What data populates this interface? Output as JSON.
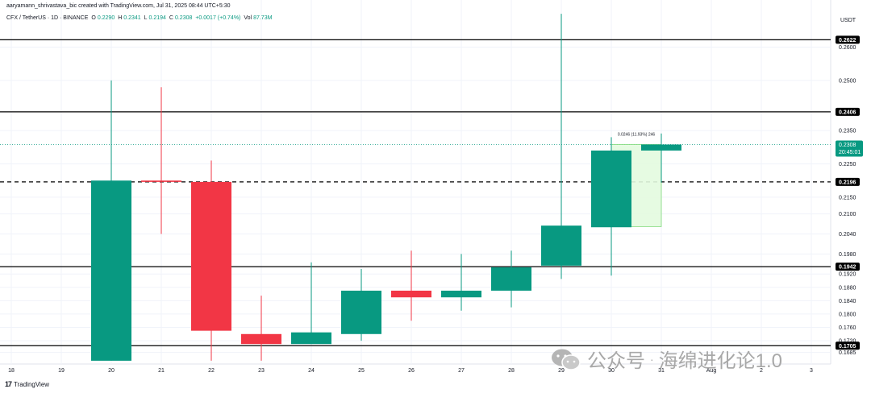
{
  "header": {
    "created_by": "aaryamann_shrivastava_bic created with TradingView.com, Jul 31, 2025 08:44 UTC+5:30",
    "symbol_line": "CFX / TetherUS · 1D · BINANCE",
    "open_label": "O",
    "open": "0.2290",
    "high_label": "H",
    "high": "0.2341",
    "low_label": "L",
    "low": "0.2194",
    "close_label": "C",
    "close": "0.2308",
    "change": "+0.0017 (+0.74%)",
    "vol_label": "Vol",
    "vol": "87.73M"
  },
  "currency": "USDT",
  "branding": "TradingView",
  "watermark": {
    "account": "公众号",
    "separator": "·",
    "name": "海绵进化论1.0"
  },
  "colors": {
    "up": "#089981",
    "down": "#f23645",
    "level_line": "#000000",
    "projection_fill": "#e3fbdf",
    "projection_stroke": "#7ed97a",
    "price_label_bg": "#000000",
    "current_label_bg": "#089981",
    "axis_text": "#131722"
  },
  "chart_data": {
    "type": "candlestick",
    "symbol": "CFX / TetherUS",
    "interval": "1D",
    "exchange": "BINANCE",
    "currency": "USDT",
    "x_tick_labels": [
      "18",
      "19",
      "20",
      "21",
      "22",
      "23",
      "24",
      "25",
      "26",
      "27",
      "28",
      "29",
      "30",
      "31",
      "Aug",
      "2",
      "3"
    ],
    "y_tick_labels": [
      "0.2600",
      "0.2500",
      "0.2350",
      "0.2250",
      "0.2150",
      "0.2100",
      "0.2040",
      "0.1980",
      "0.1920",
      "0.1880",
      "0.1840",
      "0.1800",
      "0.1760",
      "0.1720",
      "0.1685"
    ],
    "y_range": [
      0.1655,
      0.2705
    ],
    "candles": [
      {
        "date": "20",
        "open": 0.166,
        "high": 0.25,
        "low": 0.166,
        "close": 0.22
      },
      {
        "date": "21",
        "open": 0.22,
        "high": 0.248,
        "low": 0.204,
        "close": 0.2196
      },
      {
        "date": "22",
        "open": 0.2196,
        "high": 0.226,
        "low": 0.166,
        "close": 0.175
      },
      {
        "date": "23",
        "open": 0.174,
        "high": 0.1855,
        "low": 0.166,
        "close": 0.171
      },
      {
        "date": "24",
        "open": 0.171,
        "high": 0.1955,
        "low": 0.171,
        "close": 0.1745
      },
      {
        "date": "25",
        "open": 0.174,
        "high": 0.1935,
        "low": 0.172,
        "close": 0.187
      },
      {
        "date": "26",
        "open": 0.187,
        "high": 0.199,
        "low": 0.178,
        "close": 0.185
      },
      {
        "date": "27",
        "open": 0.185,
        "high": 0.198,
        "low": 0.181,
        "close": 0.187
      },
      {
        "date": "28",
        "open": 0.187,
        "high": 0.199,
        "low": 0.182,
        "close": 0.194
      },
      {
        "date": "29",
        "open": 0.1945,
        "high": 0.27,
        "low": 0.1905,
        "close": 0.2065
      },
      {
        "date": "30",
        "open": 0.206,
        "high": 0.233,
        "low": 0.1915,
        "close": 0.229
      },
      {
        "date": "31",
        "open": 0.229,
        "high": 0.2341,
        "low": 0.2194,
        "close": 0.2308
      }
    ],
    "levels": [
      {
        "value": 0.2622,
        "label": "0.2622",
        "style": "solid"
      },
      {
        "value": 0.2406,
        "label": "0.2406",
        "style": "solid"
      },
      {
        "value": 0.2196,
        "label": "0.2196",
        "style": "dashed"
      },
      {
        "value": 0.1942,
        "label": "0.1942",
        "style": "solid"
      },
      {
        "value": 0.1705,
        "label": "0.1705",
        "style": "solid"
      }
    ],
    "current_price": {
      "value": 0.2308,
      "label": "0.2308",
      "countdown": "20:45:01"
    },
    "projection": {
      "from_date": "30",
      "to_date": "31",
      "bottom": 0.2062,
      "top": 0.2308,
      "label": "0.0246 (11.93%) 246"
    }
  }
}
